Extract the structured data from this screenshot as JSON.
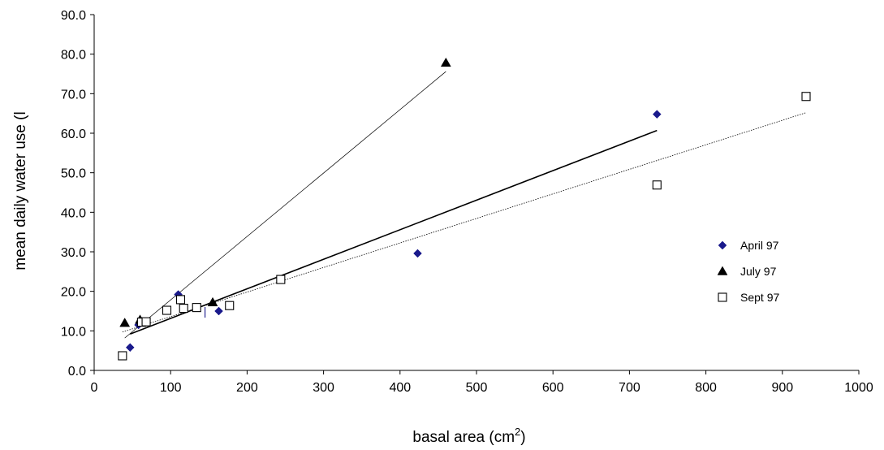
{
  "chart_data": {
    "type": "scatter",
    "xlabel": "basal area (cm",
    "xlabel_sup": "2",
    "xlabel_suffix": ")",
    "ylabel": "mean daily water use (l",
    "xlim": [
      0,
      1000
    ],
    "ylim": [
      0,
      90
    ],
    "xticks": [
      "0",
      "100",
      "200",
      "300",
      "400",
      "500",
      "600",
      "700",
      "800",
      "900",
      "1000"
    ],
    "yticks": [
      "0.0",
      "10.0",
      "20.0",
      "30.0",
      "40.0",
      "50.0",
      "60.0",
      "70.0",
      "80.0",
      "90.0"
    ],
    "grid": false,
    "legend_position": "right",
    "series": [
      {
        "name": "April 97",
        "marker": "diamond",
        "color": "#1a1a8c",
        "points": [
          [
            47,
            5.8
          ],
          [
            58,
            11.5
          ],
          [
            110,
            19.2
          ],
          [
            163,
            15.0
          ],
          [
            423,
            29.6
          ],
          [
            736,
            64.8
          ]
        ],
        "trendline": {
          "from": [
            47,
            9.2
          ],
          "to": [
            736,
            60.7
          ],
          "style": "solid",
          "width": 1.6
        }
      },
      {
        "name": "July 97",
        "marker": "triangle",
        "color": "#000000",
        "points": [
          [
            40,
            12.0
          ],
          [
            60,
            12.8
          ],
          [
            155,
            17.2
          ],
          [
            460,
            77.8
          ]
        ],
        "trendline": {
          "from": [
            40,
            8.2
          ],
          "to": [
            460,
            75.6
          ],
          "style": "solid",
          "width": 0.7
        }
      },
      {
        "name": "Sept 97",
        "marker": "square",
        "color": "#000000",
        "points": [
          [
            37,
            3.7
          ],
          [
            62,
            12.2
          ],
          [
            68,
            12.3
          ],
          [
            95,
            15.2
          ],
          [
            113,
            17.9
          ],
          [
            117,
            15.7
          ],
          [
            134,
            15.9
          ],
          [
            177,
            16.4
          ],
          [
            244,
            23.0
          ],
          [
            736,
            46.9
          ],
          [
            931,
            69.3
          ]
        ],
        "trendline": {
          "from": [
            37,
            9.7
          ],
          "to": [
            931,
            65.2
          ],
          "style": "dotted",
          "width": 0.8
        }
      }
    ],
    "annotations": [
      {
        "text": "|",
        "x": 145,
        "y": 15.0
      }
    ]
  }
}
